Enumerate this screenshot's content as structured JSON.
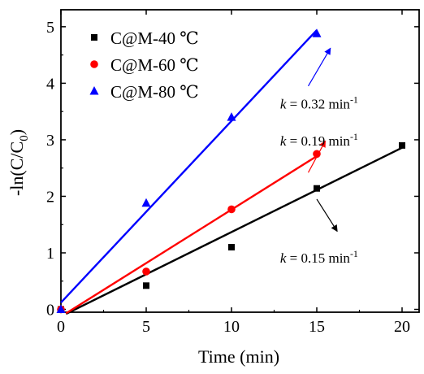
{
  "chart_data": {
    "type": "scatter",
    "xlabel": "Time (min)",
    "ylabel": "-ln(C/C0)",
    "xlim": [
      0,
      21
    ],
    "ylim": [
      -0.05,
      5.3
    ],
    "xticks": [
      "0",
      "5",
      "10",
      "15",
      "20"
    ],
    "yticks": [
      "0",
      "1",
      "2",
      "3",
      "4",
      "5"
    ],
    "legend_position": "top-left",
    "series": [
      {
        "name": "C@M-40 ℃",
        "marker": "square",
        "color": "#000000",
        "points": [
          [
            0,
            0
          ],
          [
            5,
            0.42
          ],
          [
            10,
            1.1
          ],
          [
            15,
            2.14
          ],
          [
            20,
            2.9
          ]
        ],
        "fit": [
          [
            0.3,
            -0.08
          ],
          [
            20,
            2.86
          ]
        ]
      },
      {
        "name": "C@M-60 ℃",
        "marker": "circle",
        "color": "#ff0000",
        "points": [
          [
            0,
            0
          ],
          [
            5,
            0.67
          ],
          [
            10,
            1.77
          ],
          [
            15,
            2.75
          ]
        ],
        "fit": [
          [
            0.3,
            -0.07
          ],
          [
            15,
            2.71
          ]
        ]
      },
      {
        "name": "C@M-80 ℃",
        "marker": "triangle",
        "color": "#0000ff",
        "points": [
          [
            0,
            0
          ],
          [
            5,
            1.88
          ],
          [
            10,
            3.4
          ],
          [
            15,
            4.88
          ]
        ],
        "fit": [
          [
            0,
            0.12
          ],
          [
            15,
            4.94
          ]
        ]
      }
    ],
    "annotations": [
      {
        "k": "k",
        "eq": " = 0.32 min",
        "sup": "-1",
        "color": "#000000",
        "x": 12.85,
        "y": 3.55,
        "arrow_from": [
          14.5,
          3.95
        ],
        "arrow_to": [
          15.8,
          4.62
        ],
        "arrow_color": "#0000ff"
      },
      {
        "k": "k",
        "eq": " = 0.19 min",
        "sup": "-1",
        "color": "#000000",
        "x": 12.85,
        "y": 2.9,
        "arrow_from": [
          14.5,
          2.42
        ],
        "arrow_to": [
          15.5,
          2.98
        ],
        "arrow_color": "#ff0000"
      },
      {
        "k": "k",
        "eq": " = 0.15 min",
        "sup": "-1",
        "color": "#000000",
        "x": 12.85,
        "y": 0.83,
        "arrow_from": [
          15.0,
          1.95
        ],
        "arrow_to": [
          16.2,
          1.38
        ],
        "arrow_color": "#000000"
      }
    ]
  }
}
